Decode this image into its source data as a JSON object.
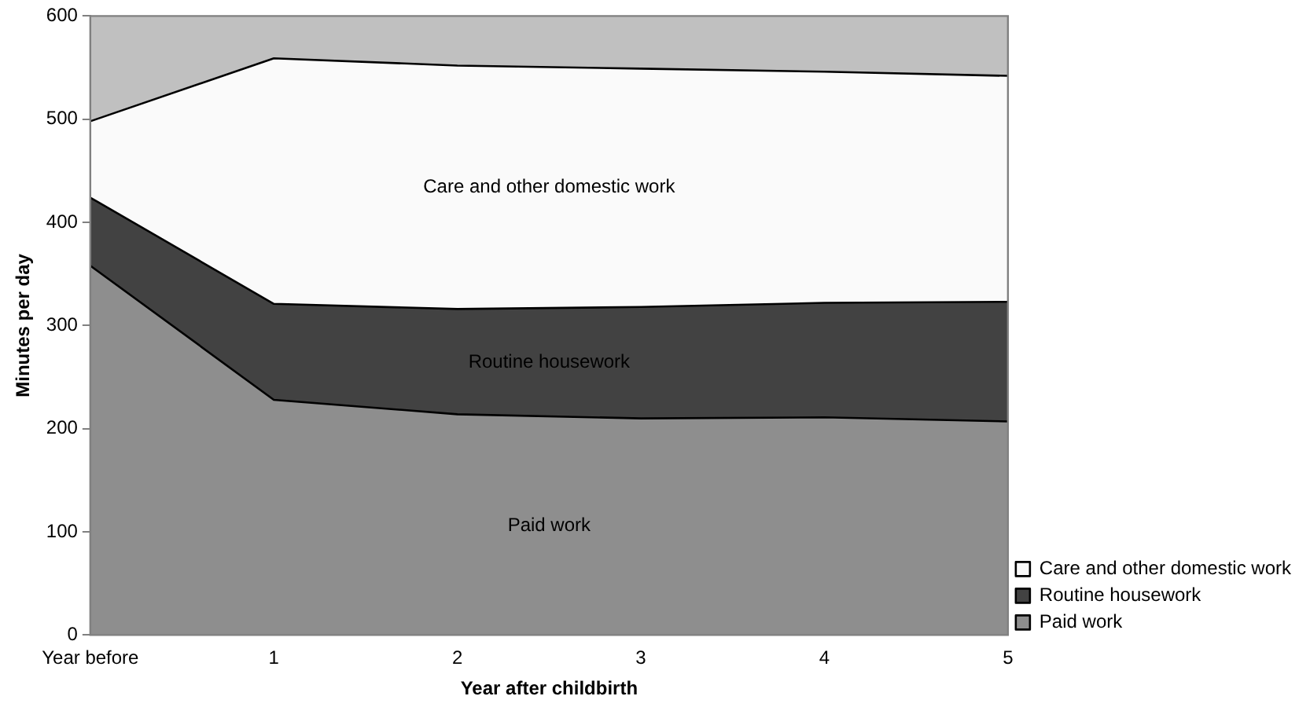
{
  "chart_data": {
    "type": "area",
    "stacked": true,
    "xlabel": "Year after childbirth",
    "ylabel": "Minutes per day",
    "categories": [
      "Year before",
      "1",
      "2",
      "3",
      "4",
      "5"
    ],
    "series": [
      {
        "name": "Paid work",
        "color": "#8e8e8e",
        "values": [
          358,
          228,
          214,
          210,
          211,
          207
        ]
      },
      {
        "name": "Routine housework",
        "color": "#424242",
        "values": [
          66,
          93,
          102,
          108,
          111,
          116
        ]
      },
      {
        "name": "Care and other domestic work",
        "color": "#fafafa",
        "values": [
          74,
          238,
          236,
          231,
          224,
          219
        ]
      }
    ],
    "ylim": [
      0,
      600
    ],
    "yticks": [
      0,
      100,
      200,
      300,
      400,
      500,
      600
    ],
    "grid": false,
    "legend": "bottom right",
    "annotations": [
      "Paid work",
      "Routine housework",
      "Care and other domestic work"
    ]
  }
}
